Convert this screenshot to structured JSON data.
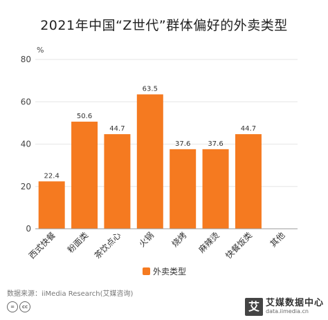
{
  "header": {
    "title": "2021年中国“Z世代”群体偏好的外卖类型"
  },
  "chart_data": {
    "type": "bar",
    "title": "2021年中国“Z世代”群体偏好的外卖类型",
    "ylabel": "%",
    "xlabel": "",
    "ylim": [
      0,
      80
    ],
    "yticks": [
      0,
      20,
      40,
      60,
      80
    ],
    "categories": [
      "西式快餐",
      "粉面类",
      "茶饮点心",
      "火锅",
      "烧烤",
      "麻辣烫",
      "快餐饭类",
      "其他"
    ],
    "series": [
      {
        "name": "外卖类型",
        "values": [
          22.4,
          50.6,
          44.7,
          63.5,
          37.6,
          37.6,
          44.7,
          null
        ],
        "labels": [
          "22.4",
          "50.6",
          "44.7",
          "63.5",
          "37.6",
          "37.6",
          "44.7",
          ""
        ]
      }
    ],
    "color": "#f57a20",
    "grid": true,
    "legend_position": "bottom-center"
  },
  "footer": {
    "source": "数据来源：iiMedia Research(艾媒咨询)",
    "license_icons": [
      "=",
      "cc"
    ],
    "brand_mark": "艾",
    "brand_name": "艾媒数据中心",
    "brand_url": "data.iimedia.cn"
  }
}
